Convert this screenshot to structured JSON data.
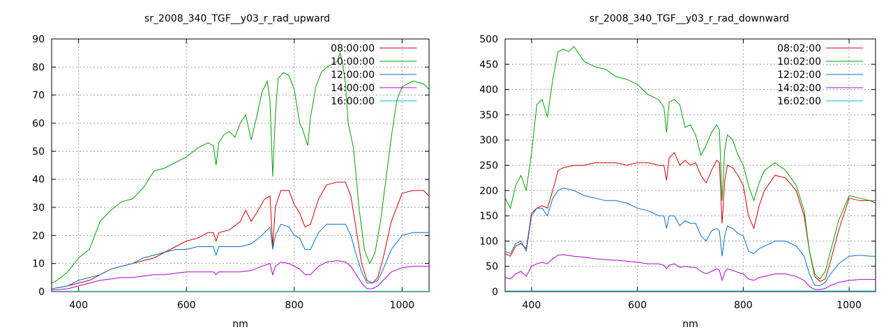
{
  "colors": {
    "08": "#d00000",
    "10": "#00a000",
    "12": "#0070d0",
    "14": "#b000d0",
    "16": "#00c0d0"
  },
  "chart_data": [
    {
      "type": "line",
      "title": "sr_2008_340_TGF__y03_r_rad_upward",
      "xlabel": "nm",
      "ylabel": "",
      "xlim": [
        350,
        1050
      ],
      "ylim": [
        0,
        90
      ],
      "xticks": [
        400,
        600,
        800,
        1000
      ],
      "yticks": [
        0,
        10,
        20,
        30,
        40,
        50,
        60,
        70,
        80,
        90
      ],
      "grid": true,
      "legend": "top-right",
      "series": [
        {
          "name": "08:00:00",
          "color": "#d00000",
          "x": [
            350,
            380,
            400,
            420,
            440,
            460,
            480,
            500,
            520,
            540,
            560,
            580,
            600,
            620,
            640,
            650,
            655,
            660,
            680,
            700,
            710,
            720,
            730,
            745,
            755,
            760,
            765,
            775,
            790,
            800,
            810,
            820,
            830,
            845,
            860,
            880,
            895,
            905,
            915,
            925,
            935,
            945,
            955,
            965,
            980,
            1000,
            1020,
            1040,
            1050
          ],
          "y": [
            1,
            2,
            3,
            4,
            6,
            8,
            9,
            10,
            11,
            12,
            14,
            16,
            18,
            19,
            21,
            21,
            18,
            21,
            22,
            25,
            29,
            25,
            28,
            33,
            34,
            16,
            30,
            36,
            36,
            31,
            28,
            23,
            24,
            33,
            38,
            39,
            39,
            34,
            22,
            10,
            4,
            3,
            5,
            12,
            25,
            35,
            36,
            36,
            34
          ]
        },
        {
          "name": "10:00:00",
          "color": "#00a000",
          "x": [
            350,
            360,
            380,
            400,
            420,
            440,
            460,
            480,
            500,
            520,
            540,
            560,
            580,
            600,
            620,
            640,
            650,
            655,
            660,
            670,
            680,
            690,
            700,
            710,
            720,
            730,
            740,
            750,
            755,
            760,
            765,
            770,
            780,
            790,
            800,
            810,
            815,
            820,
            825,
            830,
            840,
            850,
            860,
            870,
            880,
            885,
            890,
            895,
            900,
            910,
            920,
            930,
            940,
            950,
            960,
            970,
            980,
            990,
            1000,
            1020,
            1040,
            1050
          ],
          "y": [
            3,
            4,
            7,
            12,
            15,
            25,
            29,
            32,
            33,
            37,
            43,
            44,
            46,
            48,
            51,
            53,
            52,
            45,
            53,
            56,
            57,
            55,
            60,
            63,
            54,
            62,
            71,
            75,
            68,
            41,
            63,
            76,
            78,
            77,
            72,
            60,
            58,
            55,
            52,
            62,
            73,
            78,
            80,
            81,
            82,
            85,
            81,
            74,
            60,
            51,
            30,
            15,
            10,
            14,
            25,
            40,
            55,
            68,
            73,
            75,
            74,
            72
          ]
        },
        {
          "name": "12:00:00",
          "color": "#0070d0",
          "x": [
            350,
            380,
            400,
            420,
            440,
            460,
            480,
            500,
            520,
            540,
            560,
            580,
            600,
            620,
            640,
            650,
            655,
            660,
            680,
            700,
            720,
            740,
            755,
            760,
            765,
            775,
            790,
            800,
            810,
            820,
            830,
            845,
            860,
            880,
            895,
            905,
            915,
            925,
            935,
            945,
            955,
            965,
            980,
            1000,
            1020,
            1040,
            1050
          ],
          "y": [
            1,
            2,
            4,
            5,
            6,
            8,
            9,
            10,
            12,
            13,
            14,
            15,
            15,
            16,
            16,
            16,
            13,
            16,
            16,
            16,
            17,
            20,
            23,
            15,
            20,
            24,
            23,
            20,
            19,
            15,
            15,
            21,
            24,
            24,
            24,
            20,
            13,
            7,
            3,
            3,
            4,
            8,
            15,
            20,
            21,
            21,
            21
          ]
        },
        {
          "name": "14:00:00",
          "color": "#b000d0",
          "x": [
            350,
            380,
            400,
            420,
            440,
            460,
            480,
            500,
            520,
            540,
            560,
            580,
            600,
            620,
            640,
            650,
            655,
            660,
            680,
            700,
            720,
            740,
            755,
            760,
            765,
            775,
            790,
            800,
            810,
            820,
            830,
            845,
            860,
            880,
            895,
            905,
            915,
            925,
            935,
            945,
            955,
            965,
            980,
            1000,
            1020,
            1040,
            1050
          ],
          "y": [
            0.5,
            1,
            2,
            3,
            4,
            4.5,
            5,
            5,
            5.5,
            6,
            6,
            6.5,
            7,
            7,
            7,
            7,
            6,
            7,
            7,
            7,
            7.5,
            9,
            10,
            6,
            9,
            10.5,
            10,
            9,
            8,
            6,
            6,
            9,
            10.5,
            11,
            10.5,
            9,
            6,
            3,
            1,
            1,
            2,
            4,
            7,
            8.5,
            9,
            9,
            9
          ]
        },
        {
          "name": "16:00:00",
          "color": "#00c0d0",
          "x": [
            350,
            600,
            800,
            1050
          ],
          "y": [
            0.1,
            0.1,
            0.1,
            0.1
          ]
        }
      ]
    },
    {
      "type": "line",
      "title": "sr_2008_340_TGF__y03_r_rad_downward",
      "xlabel": "nm",
      "ylabel": "",
      "xlim": [
        350,
        1050
      ],
      "ylim": [
        0,
        500
      ],
      "xticks": [
        400,
        600,
        800,
        1000
      ],
      "yticks": [
        0,
        50,
        100,
        150,
        200,
        250,
        300,
        350,
        400,
        450,
        500
      ],
      "grid": true,
      "legend": "top-right",
      "series": [
        {
          "name": "08:02:00",
          "color": "#d00000",
          "x": [
            350,
            360,
            370,
            380,
            390,
            400,
            410,
            420,
            430,
            440,
            450,
            460,
            480,
            500,
            520,
            540,
            560,
            580,
            600,
            620,
            640,
            650,
            655,
            660,
            670,
            680,
            690,
            700,
            710,
            720,
            730,
            740,
            750,
            755,
            760,
            765,
            770,
            780,
            790,
            800,
            810,
            820,
            830,
            840,
            860,
            880,
            900,
            915,
            925,
            935,
            945,
            955,
            965,
            980,
            1000,
            1020,
            1040,
            1050
          ],
          "y": [
            75,
            70,
            90,
            95,
            85,
            155,
            165,
            170,
            165,
            200,
            240,
            245,
            250,
            250,
            255,
            255,
            255,
            250,
            255,
            255,
            250,
            250,
            220,
            265,
            275,
            250,
            260,
            250,
            255,
            230,
            215,
            240,
            260,
            255,
            135,
            220,
            250,
            245,
            230,
            210,
            150,
            125,
            170,
            200,
            230,
            225,
            200,
            150,
            80,
            30,
            20,
            25,
            60,
            120,
            185,
            180,
            180,
            175
          ]
        },
        {
          "name": "10:02:00",
          "color": "#00a000",
          "x": [
            350,
            360,
            370,
            380,
            390,
            400,
            410,
            420,
            430,
            440,
            450,
            460,
            470,
            480,
            490,
            500,
            520,
            540,
            560,
            580,
            600,
            620,
            640,
            650,
            655,
            660,
            670,
            680,
            690,
            700,
            710,
            720,
            730,
            740,
            750,
            755,
            760,
            765,
            770,
            780,
            790,
            800,
            810,
            820,
            830,
            840,
            860,
            880,
            900,
            915,
            925,
            935,
            945,
            955,
            965,
            980,
            1000,
            1020,
            1040,
            1050
          ],
          "y": [
            185,
            165,
            210,
            230,
            200,
            275,
            370,
            380,
            345,
            420,
            475,
            480,
            475,
            485,
            470,
            455,
            445,
            440,
            425,
            420,
            410,
            390,
            380,
            365,
            315,
            375,
            380,
            370,
            325,
            330,
            310,
            270,
            290,
            315,
            330,
            320,
            180,
            280,
            310,
            300,
            270,
            250,
            210,
            180,
            215,
            240,
            255,
            240,
            210,
            160,
            80,
            35,
            25,
            40,
            80,
            140,
            190,
            185,
            180,
            180
          ]
        },
        {
          "name": "12:02:00",
          "color": "#0070d0",
          "x": [
            350,
            360,
            370,
            380,
            390,
            400,
            410,
            420,
            430,
            440,
            450,
            460,
            480,
            500,
            520,
            540,
            560,
            580,
            600,
            620,
            640,
            650,
            655,
            660,
            670,
            680,
            690,
            700,
            710,
            720,
            730,
            740,
            750,
            755,
            760,
            765,
            770,
            780,
            790,
            800,
            810,
            820,
            830,
            840,
            860,
            880,
            900,
            915,
            925,
            935,
            945,
            955,
            965,
            980,
            1000,
            1020,
            1040,
            1050
          ],
          "y": [
            80,
            75,
            95,
            100,
            80,
            150,
            165,
            165,
            150,
            185,
            200,
            205,
            200,
            190,
            185,
            180,
            180,
            175,
            165,
            160,
            150,
            150,
            125,
            150,
            150,
            130,
            140,
            135,
            135,
            110,
            100,
            120,
            125,
            120,
            70,
            110,
            130,
            125,
            115,
            110,
            80,
            75,
            85,
            90,
            100,
            100,
            90,
            70,
            35,
            12,
            12,
            18,
            35,
            55,
            70,
            72,
            70,
            70
          ]
        },
        {
          "name": "14:02:00",
          "color": "#b000d0",
          "x": [
            350,
            360,
            370,
            380,
            390,
            400,
            410,
            420,
            430,
            440,
            450,
            460,
            480,
            500,
            520,
            540,
            560,
            580,
            600,
            620,
            640,
            650,
            655,
            660,
            670,
            680,
            690,
            700,
            710,
            720,
            730,
            740,
            750,
            755,
            760,
            765,
            770,
            780,
            790,
            800,
            810,
            820,
            830,
            840,
            860,
            880,
            900,
            915,
            925,
            935,
            945,
            955,
            965,
            980,
            1000,
            1020,
            1040,
            1050
          ],
          "y": [
            28,
            25,
            35,
            40,
            30,
            50,
            55,
            58,
            55,
            65,
            72,
            73,
            70,
            68,
            65,
            63,
            62,
            60,
            58,
            55,
            55,
            52,
            45,
            52,
            55,
            48,
            50,
            48,
            48,
            40,
            35,
            40,
            45,
            42,
            22,
            38,
            45,
            42,
            38,
            35,
            25,
            22,
            28,
            30,
            35,
            35,
            30,
            22,
            10,
            4,
            4,
            6,
            12,
            18,
            22,
            24,
            24,
            24
          ]
        },
        {
          "name": "16:02:00",
          "color": "#00c0d0",
          "x": [
            350,
            600,
            800,
            1050
          ],
          "y": [
            1,
            1,
            1,
            1
          ]
        }
      ]
    }
  ]
}
